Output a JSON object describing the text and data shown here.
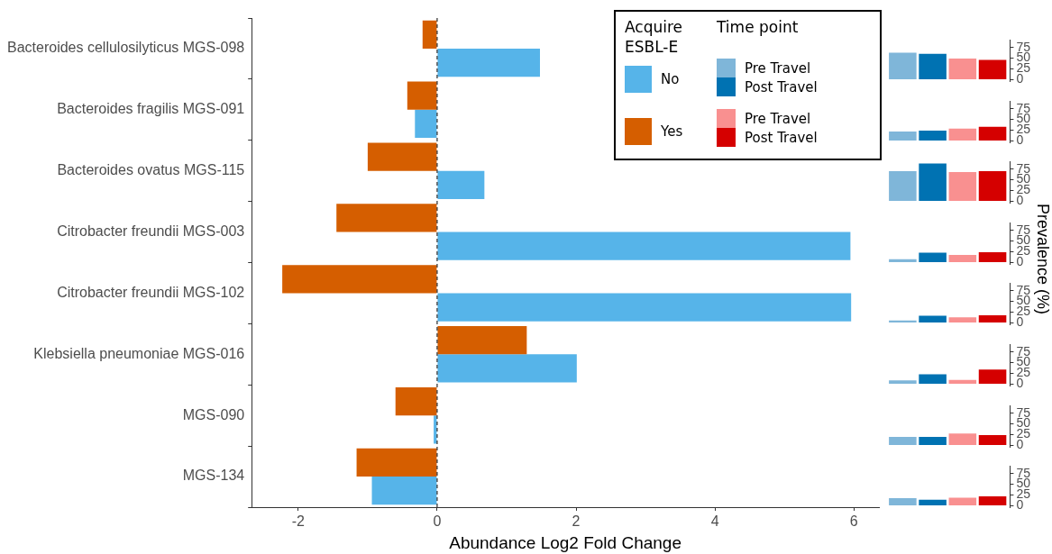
{
  "chart_data": [
    {
      "type": "bar",
      "orientation": "horizontal",
      "xlabel": "Abundance Log2 Fold Change",
      "legend_title": "Acquire ESBL-E",
      "legend": "top right",
      "grid": false,
      "categories": [
        "Bacteroides cellulosilyticus MGS-098",
        "Bacteroides fragilis MGS-091",
        "Bacteroides ovatus MGS-115",
        "Citrobacter freundii MGS-003",
        "Citrobacter freundii MGS-102",
        "Klebsiella pneumoniae MGS-016",
        "MGS-090",
        "MGS-134"
      ],
      "series": [
        {
          "name": "Yes",
          "color": "#d55e00",
          "values": [
            -0.21,
            -0.43,
            -1.0,
            -1.45,
            -2.23,
            1.29,
            -0.6,
            -1.16
          ]
        },
        {
          "name": "No",
          "color": "#56b4e9",
          "values": [
            1.48,
            -0.32,
            0.68,
            5.95,
            5.96,
            2.01,
            -0.05,
            -0.94
          ]
        }
      ],
      "xlim": [
        -2.67,
        6.36
      ],
      "xticks": [
        -2,
        0,
        2,
        4,
        6
      ],
      "ref_lines": [
        {
          "axis": "x",
          "value": 0,
          "line_style": "dashed",
          "color": "#000000"
        }
      ]
    },
    {
      "type": "bar",
      "categories": [
        null
      ],
      "legend": "left",
      "legend_title": "Time point",
      "tick_labels": "y",
      "grid": false,
      "ylim": [
        -4.4,
        92.4
      ],
      "yticks": [
        0,
        25,
        50,
        75
      ],
      "series": [
        {
          "name": "Pre Travel",
          "color": "#7fb6d9",
          "values": [
            63
          ]
        },
        {
          "name": "Post Travel",
          "color": "#0072b2",
          "values": [
            60
          ]
        },
        {
          "name": "Pre Travel",
          "color": "#f99090",
          "values": [
            49
          ]
        },
        {
          "name": "Post Travel",
          "color": "#d50000",
          "values": [
            46
          ]
        }
      ]
    },
    {
      "type": "bar",
      "categories": [
        null
      ],
      "tick_labels": "y",
      "grid": false,
      "ylim": [
        -4.4,
        92.4
      ],
      "yticks": [
        0,
        25,
        50,
        75
      ],
      "series": [
        {
          "color": "#7fb6d9",
          "values": [
            22
          ]
        },
        {
          "color": "#0072b2",
          "values": [
            24
          ]
        },
        {
          "color": "#f99090",
          "values": [
            29
          ]
        },
        {
          "color": "#d50000",
          "values": [
            33
          ]
        }
      ]
    },
    {
      "type": "bar",
      "categories": [
        null
      ],
      "tick_labels": "y",
      "grid": false,
      "ylim": [
        -4.4,
        92.4
      ],
      "yticks": [
        0,
        25,
        50,
        75
      ],
      "series": [
        {
          "color": "#7fb6d9",
          "values": [
            70
          ]
        },
        {
          "color": "#0072b2",
          "values": [
            88
          ]
        },
        {
          "color": "#f99090",
          "values": [
            68
          ]
        },
        {
          "color": "#d50000",
          "values": [
            70
          ]
        }
      ]
    },
    {
      "type": "bar",
      "categories": [
        null
      ],
      "tick_labels": "y",
      "grid": false,
      "ylim": [
        -4.4,
        92.4
      ],
      "yticks": [
        0,
        25,
        50,
        75
      ],
      "ylabel": "Prevalence (%)",
      "series": [
        {
          "color": "#7fb6d9",
          "values": [
            8
          ]
        },
        {
          "color": "#0072b2",
          "values": [
            23
          ]
        },
        {
          "color": "#f99090",
          "values": [
            18
          ]
        },
        {
          "color": "#d50000",
          "values": [
            24
          ]
        }
      ]
    },
    {
      "type": "bar",
      "categories": [
        null
      ],
      "tick_labels": "y",
      "grid": false,
      "ylim": [
        -4.4,
        92.4
      ],
      "yticks": [
        0,
        25,
        50,
        75
      ],
      "series": [
        {
          "color": "#7fb6d9",
          "values": [
            6
          ]
        },
        {
          "color": "#0072b2",
          "values": [
            17
          ]
        },
        {
          "color": "#f99090",
          "values": [
            13
          ]
        },
        {
          "color": "#d50000",
          "values": [
            18
          ]
        }
      ]
    },
    {
      "type": "bar",
      "categories": [
        null
      ],
      "tick_labels": "y",
      "grid": false,
      "ylim": [
        -4.4,
        92.4
      ],
      "yticks": [
        0,
        25,
        50,
        75
      ],
      "series": [
        {
          "color": "#7fb6d9",
          "values": [
            9
          ]
        },
        {
          "color": "#0072b2",
          "values": [
            23
          ]
        },
        {
          "color": "#f99090",
          "values": [
            10
          ]
        },
        {
          "color": "#d50000",
          "values": [
            34
          ]
        }
      ]
    },
    {
      "type": "bar",
      "categories": [
        null
      ],
      "tick_labels": "y",
      "grid": false,
      "ylim": [
        -4.4,
        92.4
      ],
      "yticks": [
        0,
        25,
        50,
        75
      ],
      "series": [
        {
          "color": "#7fb6d9",
          "values": [
            20
          ]
        },
        {
          "color": "#0072b2",
          "values": [
            20
          ]
        },
        {
          "color": "#f99090",
          "values": [
            28
          ]
        },
        {
          "color": "#d50000",
          "values": [
            24
          ]
        }
      ]
    },
    {
      "type": "bar",
      "categories": [
        null
      ],
      "tick_labels": "y",
      "grid": false,
      "ylim": [
        -4.4,
        92.4
      ],
      "yticks": [
        0,
        25,
        50,
        75
      ],
      "series": [
        {
          "color": "#7fb6d9",
          "values": [
            18
          ]
        },
        {
          "color": "#0072b2",
          "values": [
            14
          ]
        },
        {
          "color": "#f99090",
          "values": [
            19
          ]
        },
        {
          "color": "#d50000",
          "values": [
            22
          ]
        }
      ]
    }
  ]
}
